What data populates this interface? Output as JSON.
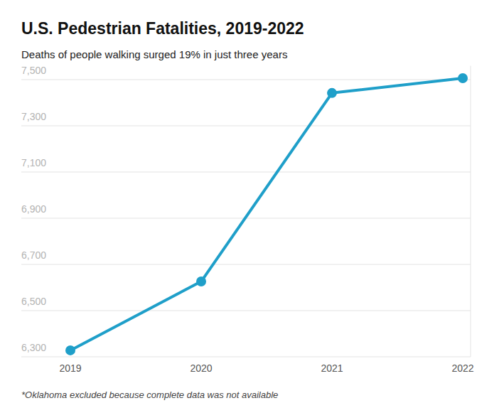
{
  "chart_data": {
    "type": "line",
    "title": "U.S. Pedestrian Fatalities, 2019-2022",
    "subtitle": "Deaths of people walking surged 19% in just three years",
    "footnote": "*Oklahoma excluded because complete data was not available",
    "categories": [
      "2019",
      "2020",
      "2021",
      "2022"
    ],
    "values": [
      6328,
      6626,
      7442,
      7506
    ],
    "color": "#1f9fc9",
    "marker": "circle",
    "ylim": [
      6300,
      7560
    ],
    "yticks": [
      {
        "value": 6300,
        "label": "6,300"
      },
      {
        "value": 6500,
        "label": "6,500"
      },
      {
        "value": 6700,
        "label": "6,700"
      },
      {
        "value": 6900,
        "label": "6,900"
      },
      {
        "value": 7100,
        "label": "7,100"
      },
      {
        "value": 7300,
        "label": "7,300"
      },
      {
        "value": 7500,
        "label": "7,500"
      }
    ],
    "grid": true
  }
}
